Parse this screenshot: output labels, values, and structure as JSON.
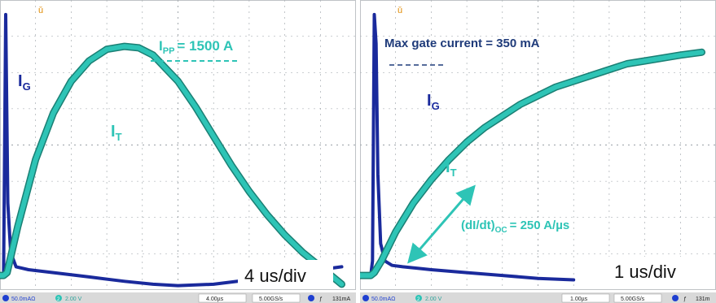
{
  "chart_data": [
    {
      "type": "line",
      "timebase": "4 us/div",
      "series": [
        {
          "name": "I",
          "sub": "G",
          "color": "#1a2a9c",
          "x": [
            0,
            0.1,
            0.16,
            0.22,
            0.3,
            0.45,
            0.8,
            1.5,
            2.5,
            3.5,
            4.3,
            5.0,
            6.0,
            7.0,
            8.0,
            9.0,
            9.6
          ],
          "y": [
            0.05,
            0.05,
            0.95,
            0.3,
            0.13,
            0.08,
            0.07,
            0.06,
            0.045,
            0.03,
            0.02,
            0.015,
            0.02,
            0.035,
            0.05,
            0.07,
            0.08
          ]
        },
        {
          "name": "I",
          "sub": "T",
          "color": "#2ec4b6",
          "x": [
            0,
            0.1,
            0.2,
            0.5,
            1.0,
            1.5,
            2.0,
            2.5,
            3.0,
            3.5,
            3.9,
            4.3,
            5.0,
            5.5,
            6.0,
            6.5,
            7.0,
            7.5,
            8.0,
            8.5,
            9.0,
            9.6
          ],
          "y": [
            0.05,
            0.05,
            0.06,
            0.22,
            0.45,
            0.61,
            0.72,
            0.79,
            0.83,
            0.84,
            0.835,
            0.81,
            0.72,
            0.63,
            0.53,
            0.43,
            0.34,
            0.26,
            0.19,
            0.13,
            0.08,
            0.02
          ]
        }
      ],
      "annotations": {
        "ipp_sym": "I",
        "ipp_sub": "PP",
        "ipp_value": "= 1500 A"
      },
      "status_bar": {
        "ch1": "50.0mAΩ",
        "ch2": "2.00 V",
        "time": "4.00µs",
        "rate": "5.00GS/s",
        "trig": "131mA"
      }
    },
    {
      "type": "line",
      "timebase": "1 us/div",
      "series": [
        {
          "name": "I",
          "sub": "G",
          "color": "#1a2a9c",
          "x": [
            0,
            0.3,
            0.35,
            0.4,
            0.45,
            0.5,
            0.58,
            0.7,
            0.9,
            1.2,
            2.0,
            3.0,
            4.0,
            5.0,
            6.0
          ],
          "y": [
            0.05,
            0.05,
            0.1,
            0.95,
            0.85,
            0.4,
            0.16,
            0.1,
            0.085,
            0.08,
            0.07,
            0.06,
            0.05,
            0.04,
            0.035
          ]
        },
        {
          "name": "I",
          "sub": "T",
          "color": "#2ec4b6",
          "x": [
            0,
            0.3,
            0.4,
            0.6,
            0.8,
            1.0,
            1.5,
            2.0,
            2.5,
            3.0,
            3.5,
            4.0,
            4.5,
            5.0,
            5.5,
            6.0,
            6.5,
            7.0,
            7.5,
            8.0,
            8.5,
            9.0,
            9.6
          ],
          "y": [
            0.05,
            0.05,
            0.06,
            0.1,
            0.15,
            0.2,
            0.3,
            0.38,
            0.45,
            0.51,
            0.56,
            0.6,
            0.64,
            0.67,
            0.7,
            0.72,
            0.74,
            0.76,
            0.78,
            0.79,
            0.8,
            0.81,
            0.82
          ]
        }
      ],
      "annotations": {
        "max_gate": "Max gate current = 350 mA",
        "didt_label": "(dI/dt)",
        "didt_sub": "OC",
        "didt_value": "= 250 A/µs"
      },
      "status_bar": {
        "ch1": "50.0mAΩ",
        "ch2": "2.00 V",
        "time": "1.00µs",
        "rate": "5.00GS/s",
        "trig": "131m"
      }
    }
  ]
}
